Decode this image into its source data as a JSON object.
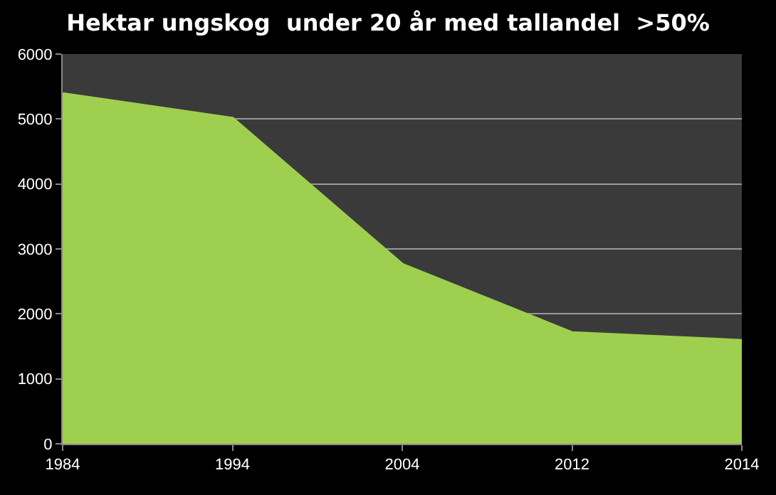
{
  "chart_data": {
    "type": "area",
    "title": "Hektar ungskog  under 20 år med tallandel  >50%",
    "categories": [
      "1984",
      "1994",
      "2004",
      "2012",
      "2014"
    ],
    "values": [
      5380,
      5000,
      2750,
      1700,
      1580
    ],
    "color": "#9fcf4f",
    "ylim": [
      0,
      6000
    ],
    "yticks": [
      0,
      1000,
      2000,
      3000,
      4000,
      5000,
      6000
    ],
    "grid": "y"
  }
}
